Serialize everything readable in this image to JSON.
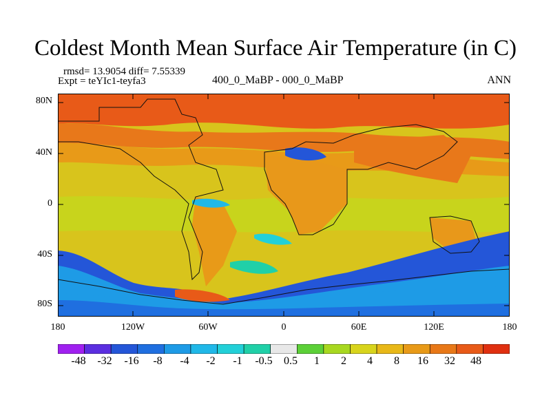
{
  "title": "Coldest Month Mean Surface Air Temperature (in C)",
  "stats": "rmsd= 13.9054  diff= 7.55339",
  "expt": "Expt = teYIc1-teyfa3",
  "comparison": "400_0_MaBP - 000_0_MaBP",
  "season": "ANN",
  "lat_labels": [
    "80N",
    "40N",
    "0",
    "40S",
    "80S"
  ],
  "lon_labels": [
    "180",
    "120W",
    "60W",
    "0",
    "60E",
    "120E",
    "180"
  ],
  "colorbar": {
    "labels": [
      "-48",
      "-32",
      "-16",
      "-8",
      "-4",
      "-2",
      "-1",
      "-0.5",
      "0.5",
      "1",
      "2",
      "4",
      "8",
      "16",
      "32",
      "48"
    ],
    "colors": [
      "#a020f0",
      "#5b2ee0",
      "#2456d8",
      "#1f6fe0",
      "#1e9be6",
      "#20b8e8",
      "#22d0d8",
      "#20d0a8",
      "#e8e8e8",
      "#5cd038",
      "#a8d820",
      "#d8d41c",
      "#e8b818",
      "#e89a18",
      "#e87818",
      "#e85a18",
      "#e03010"
    ]
  }
}
